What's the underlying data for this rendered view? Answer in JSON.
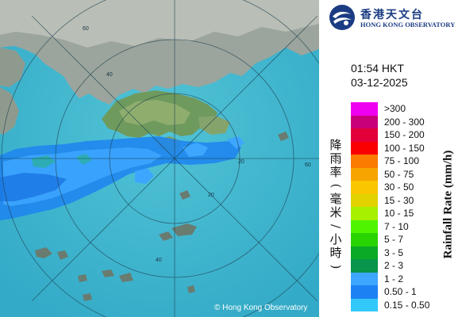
{
  "logo": {
    "name_zh": "香港天文台",
    "name_en": "HONG KONG OBSERVATORY"
  },
  "timestamp": {
    "time": "01:54 HKT",
    "date": "03-12-2025"
  },
  "map": {
    "copyright": "© Hong Kong Observatory",
    "range_ring_labels": [
      "60",
      "60",
      "40",
      "40",
      "20",
      "20"
    ]
  },
  "legend": {
    "title_zh": [
      "降",
      "雨",
      "率",
      "(",
      "毫",
      "米",
      "/",
      "小",
      "時",
      ")"
    ],
    "title_en": "Rainfall Rate (mm/h)",
    "items": [
      {
        "label": ">300",
        "color": "#f000f0"
      },
      {
        "label": "200 - 300",
        "color": "#c8007a"
      },
      {
        "label": "150 - 200",
        "color": "#e3003a"
      },
      {
        "label": "100 - 150",
        "color": "#fb0000"
      },
      {
        "label": "75 - 100",
        "color": "#fb7a00"
      },
      {
        "label": "50 - 75",
        "color": "#f7a400"
      },
      {
        "label": "30 - 50",
        "color": "#f9c600"
      },
      {
        "label": "15 - 30",
        "color": "#e1d200"
      },
      {
        "label": "10 - 15",
        "color": "#a6f000"
      },
      {
        "label": "7 - 10",
        "color": "#4ff500"
      },
      {
        "label": "5 - 7",
        "color": "#2ad400"
      },
      {
        "label": "3 - 5",
        "color": "#0aaa26"
      },
      {
        "label": "2 - 3",
        "color": "#08944a"
      },
      {
        "label": "1 - 2",
        "color": "#3ea6ff"
      },
      {
        "label": "0.50 - 1",
        "color": "#1c82f4"
      },
      {
        "label": "0.15 - 0.50",
        "color": "#32c8fa"
      }
    ]
  }
}
